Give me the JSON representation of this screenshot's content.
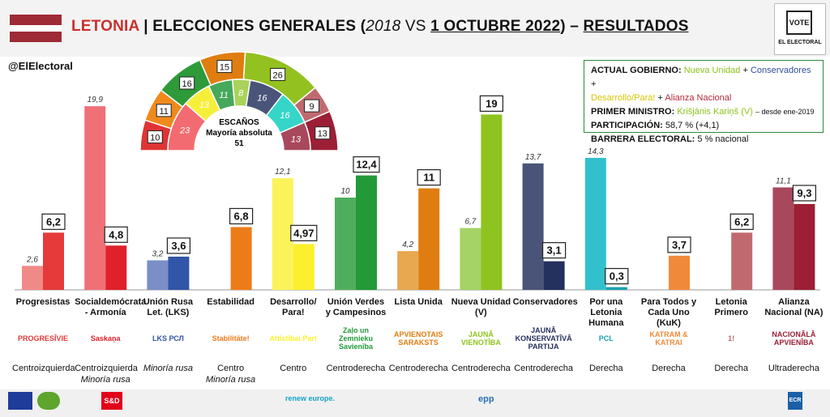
{
  "header": {
    "country": "LETONIA",
    "separator": "|",
    "title_pre": "ELECCIONES GENERALES (",
    "year_old": "2018",
    "title_vs": " VS ",
    "date_new": "1 OCTUBRE 2022",
    "title_post": ") – ",
    "results": "RESULTADOS",
    "logo_vote": "VOTE",
    "logo_brand": "EL ELECTORAL"
  },
  "handle": "@ElElectoral",
  "info": {
    "gov_label": "ACTUAL GOBIERNO:",
    "gov_p1": "Nueva Unidad",
    "gov_plus1": " + ",
    "gov_p2": "Conservadores",
    "gov_plus2": " + ",
    "gov_p3": "Desarrollo/Para!",
    "gov_plus3": " + ",
    "gov_p4": "Alianza Nacional",
    "pm_label": "PRIMER MINISTRO:",
    "pm_name": "Krišjānis Kariņš (V)",
    "pm_since": "– desde ene-2019",
    "part_label": "PARTICIPACIÓN:",
    "part_value": "58,7 % (+4,1)",
    "barrier_label": "BARRERA ELECTORAL:",
    "barrier_value": "5 % nacional"
  },
  "seats": {
    "label": "ESCAÑOS",
    "majority_label": "Mayoría absoluta",
    "majority": 51,
    "outer_2022": [
      {
        "value": 10,
        "color": "#e03434"
      },
      {
        "value": 11,
        "color": "#f08a1c"
      },
      {
        "value": 16,
        "color": "#2e9a3a"
      },
      {
        "value": 15,
        "color": "#e07d10"
      },
      {
        "value": 26,
        "color": "#93c11f"
      },
      {
        "value": 9,
        "color": "#c06a70"
      },
      {
        "value": 13,
        "color": "#9c1f35"
      }
    ],
    "inner_2018": [
      {
        "value": 23,
        "color": "#f26b70"
      },
      {
        "value": 13,
        "color": "#f6ef3a"
      },
      {
        "value": 11,
        "color": "#46a85a"
      },
      {
        "value": 8,
        "color": "#a9d35a"
      },
      {
        "value": 16,
        "color": "#4a5478"
      },
      {
        "value": 16,
        "color": "#35d6c8"
      },
      {
        "value": 13,
        "color": "#a8485c"
      }
    ]
  },
  "chart_data": {
    "type": "bar",
    "title": "",
    "xlabel": "",
    "ylabel": "",
    "ylim": [
      0,
      20
    ],
    "categories": [
      "Progresistas",
      "Socialdemócrata - Armonía",
      "Unión Rusa Let. (LKS)",
      "Estabilidad",
      "Desarrollo/ Para!",
      "Unión Verdes y Campesinos",
      "Lista Unida",
      "Nueva Unidad (V)",
      "Conservadores",
      "Por una Letonia Humana",
      "Para Todos y Cada Uno (KuK)",
      "Letonia Primero",
      "Alianza Nacional (NA)"
    ],
    "series": [
      {
        "name": "2018",
        "values": [
          2.6,
          19.9,
          3.2,
          null,
          12.1,
          10,
          4.2,
          6.7,
          13.7,
          14.3,
          null,
          null,
          11.1
        ],
        "labels": [
          "2,6",
          "19,9",
          "3,2",
          "",
          "12,1",
          "10",
          "4,2",
          "6,7",
          "13,7",
          "14,3",
          "",
          "",
          "11,1"
        ]
      },
      {
        "name": "2022",
        "values": [
          6.2,
          4.8,
          3.6,
          6.8,
          4.97,
          12.4,
          11,
          19,
          3.1,
          0.3,
          3.7,
          6.2,
          9.3
        ],
        "labels": [
          "6,2",
          "4,8",
          "3,6",
          "6,8",
          "4,97",
          "12,4",
          "11",
          "19",
          "3,1",
          "0,3",
          "3,7",
          "6,2",
          "9,3"
        ]
      }
    ],
    "colors_2018": [
      "#f08a88",
      "#f07078",
      "#7a8fc8",
      "#f2a36a",
      "#fbf35a",
      "#4fae5d",
      "#e8a850",
      "#a6d365",
      "#4a5478",
      "#32c0cc",
      "#f2a36a",
      "#c07474",
      "#a8485c"
    ],
    "colors_2022": [
      "#e63a3a",
      "#e0202a",
      "#3155a8",
      "#ee7b1a",
      "#fbf02b",
      "#229a38",
      "#e07d10",
      "#8fc31f",
      "#24305e",
      "#1aa0b0",
      "#f08a3a",
      "#c06a70",
      "#9c1f35"
    ]
  },
  "party_logos": [
    "PROGRESĪVIE",
    "Saskaņa",
    "LKS РСЛ",
    "Stabilitāte!",
    "Attīstībai Par!",
    "Zaļo un Zemnieku Savienība",
    "APVIENOTAIS SARAKSTS",
    "JAUNĀ VIENOTĪBA",
    "JAUNĀ KONSERVATĪVĀ PARTIJA",
    "PCL",
    "KATRAM & KATRAI",
    "1!",
    "NACIONĀLĀ APVIENĪBA"
  ],
  "ideology": [
    [
      "Centroizquierda",
      ""
    ],
    [
      "Centroizquierda",
      "Minoría rusa"
    ],
    [
      "",
      "Minoría rusa"
    ],
    [
      "Centro",
      "Minoría rusa"
    ],
    [
      "Centro",
      ""
    ],
    [
      "Centroderecha",
      ""
    ],
    [
      "Centroderecha",
      ""
    ],
    [
      "Centroderecha",
      ""
    ],
    [
      "Centroderecha",
      ""
    ],
    [
      "Derecha",
      ""
    ],
    [
      "Derecha",
      ""
    ],
    [
      "Derecha",
      ""
    ],
    [
      "Ultraderecha",
      ""
    ]
  ],
  "footer": {
    "sd": "S&D",
    "renew": "renew europe.",
    "epp": "epp",
    "ecr": "ECR"
  }
}
